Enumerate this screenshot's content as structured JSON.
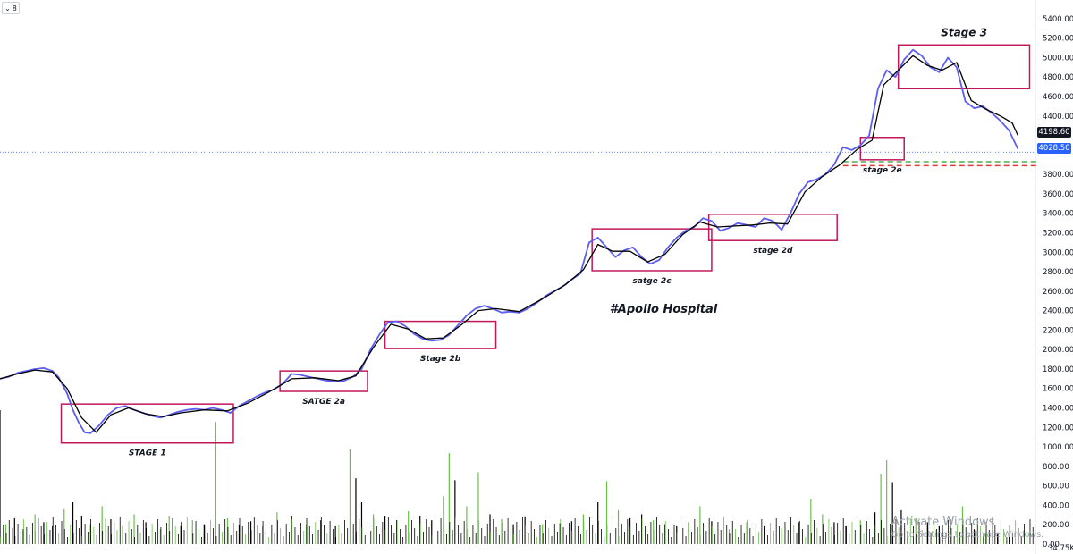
{
  "toolbar": {
    "collapse_icon": "chevron-down-icon",
    "collapse_count": "8"
  },
  "watermark": {
    "title": "Activate Windows",
    "subtitle": "Go to Settings to activate Windows."
  },
  "colors": {
    "price": "#5b5ef0",
    "ma": "#000000",
    "box": "#c2185b",
    "volume_up": "#6abf4b",
    "volume_down": "#000000",
    "last_price_label": "#131722",
    "current_label": "#2962ff"
  },
  "price_labels": {
    "last": "4198.60",
    "current": "4028.50"
  },
  "chart_data": {
    "type": "line",
    "title": "#Apollo Hospital",
    "y_ticks": [
      "5400.00",
      "5200.00",
      "5000.00",
      "4800.00",
      "4600.00",
      "4400.00",
      "3800.00",
      "3600.00",
      "3400.00",
      "3200.00",
      "3000.00",
      "2800.00",
      "2600.00",
      "2400.00",
      "2200.00",
      "2000.00",
      "1800.00",
      "1600.00",
      "1400.00",
      "1200.00",
      "1000.00",
      "800.00",
      "600.00",
      "400.00",
      "200.00",
      "0.00"
    ],
    "y_tick_values": [
      5400,
      5200,
      5000,
      4800,
      4600,
      4400,
      3800,
      3600,
      3400,
      3200,
      3000,
      2800,
      2600,
      2400,
      2200,
      2000,
      1800,
      1600,
      1400,
      1200,
      1000,
      800,
      600,
      400,
      200,
      0
    ],
    "ylim": [
      0,
      5500
    ],
    "volume_label": "34.75K",
    "series": [
      {
        "name": "",
        "style": "price",
        "values": [
          [
            0,
            1700
          ],
          [
            3,
            1720
          ],
          [
            6,
            1760
          ],
          [
            9,
            1780
          ],
          [
            12,
            1800
          ],
          [
            15,
            1810
          ],
          [
            18,
            1780
          ],
          [
            20,
            1720
          ],
          [
            23,
            1550
          ],
          [
            25,
            1380
          ],
          [
            27,
            1250
          ],
          [
            29,
            1150
          ],
          [
            31,
            1140
          ],
          [
            34,
            1220
          ],
          [
            37,
            1330
          ],
          [
            40,
            1400
          ],
          [
            43,
            1420
          ],
          [
            46,
            1380
          ],
          [
            49,
            1350
          ],
          [
            52,
            1320
          ],
          [
            55,
            1300
          ],
          [
            58,
            1330
          ],
          [
            61,
            1360
          ],
          [
            64,
            1380
          ],
          [
            67,
            1390
          ],
          [
            70,
            1380
          ],
          [
            73,
            1400
          ],
          [
            76,
            1380
          ],
          [
            79,
            1350
          ],
          [
            82,
            1420
          ],
          [
            85,
            1470
          ],
          [
            88,
            1520
          ],
          [
            91,
            1560
          ],
          [
            94,
            1590
          ],
          [
            97,
            1650
          ],
          [
            100,
            1750
          ],
          [
            103,
            1740
          ],
          [
            106,
            1720
          ],
          [
            109,
            1700
          ],
          [
            112,
            1680
          ],
          [
            115,
            1670
          ],
          [
            118,
            1680
          ],
          [
            121,
            1720
          ],
          [
            124,
            1800
          ],
          [
            127,
            2000
          ],
          [
            130,
            2150
          ],
          [
            133,
            2280
          ],
          [
            136,
            2290
          ],
          [
            139,
            2240
          ],
          [
            142,
            2160
          ],
          [
            145,
            2110
          ],
          [
            148,
            2090
          ],
          [
            151,
            2100
          ],
          [
            154,
            2150
          ],
          [
            157,
            2250
          ],
          [
            160,
            2350
          ],
          [
            163,
            2420
          ],
          [
            166,
            2450
          ],
          [
            169,
            2420
          ],
          [
            172,
            2380
          ],
          [
            175,
            2390
          ],
          [
            178,
            2380
          ],
          [
            181,
            2420
          ],
          [
            184,
            2480
          ],
          [
            187,
            2550
          ],
          [
            190,
            2600
          ],
          [
            193,
            2650
          ],
          [
            196,
            2720
          ],
          [
            199,
            2780
          ],
          [
            202,
            3100
          ],
          [
            205,
            3150
          ],
          [
            208,
            3050
          ],
          [
            211,
            2950
          ],
          [
            214,
            3020
          ],
          [
            217,
            3050
          ],
          [
            220,
            2950
          ],
          [
            223,
            2880
          ],
          [
            226,
            2920
          ],
          [
            229,
            3050
          ],
          [
            232,
            3150
          ],
          [
            235,
            3220
          ],
          [
            238,
            3260
          ],
          [
            241,
            3350
          ],
          [
            244,
            3320
          ],
          [
            247,
            3220
          ],
          [
            250,
            3250
          ],
          [
            253,
            3300
          ],
          [
            256,
            3280
          ],
          [
            259,
            3260
          ],
          [
            262,
            3350
          ],
          [
            265,
            3320
          ],
          [
            268,
            3230
          ],
          [
            271,
            3400
          ],
          [
            274,
            3600
          ],
          [
            277,
            3720
          ],
          [
            280,
            3750
          ],
          [
            283,
            3800
          ],
          [
            286,
            3900
          ],
          [
            289,
            4080
          ],
          [
            292,
            4050
          ],
          [
            295,
            4100
          ],
          [
            298,
            4200
          ],
          [
            301,
            4680
          ],
          [
            304,
            4870
          ],
          [
            307,
            4800
          ],
          [
            310,
            4980
          ],
          [
            313,
            5080
          ],
          [
            316,
            5020
          ],
          [
            319,
            4900
          ],
          [
            322,
            4850
          ],
          [
            325,
            5000
          ],
          [
            328,
            4900
          ],
          [
            331,
            4550
          ],
          [
            334,
            4480
          ],
          [
            337,
            4500
          ],
          [
            340,
            4430
          ],
          [
            343,
            4350
          ],
          [
            346,
            4250
          ],
          [
            349,
            4060
          ]
        ]
      },
      {
        "name": "",
        "style": "ma",
        "values": [
          [
            0,
            1700
          ],
          [
            6,
            1750
          ],
          [
            12,
            1790
          ],
          [
            18,
            1770
          ],
          [
            23,
            1600
          ],
          [
            28,
            1300
          ],
          [
            33,
            1150
          ],
          [
            38,
            1330
          ],
          [
            44,
            1400
          ],
          [
            50,
            1340
          ],
          [
            56,
            1310
          ],
          [
            62,
            1350
          ],
          [
            70,
            1380
          ],
          [
            78,
            1370
          ],
          [
            85,
            1450
          ],
          [
            92,
            1560
          ],
          [
            100,
            1700
          ],
          [
            108,
            1710
          ],
          [
            116,
            1680
          ],
          [
            122,
            1730
          ],
          [
            128,
            2020
          ],
          [
            134,
            2260
          ],
          [
            140,
            2210
          ],
          [
            146,
            2110
          ],
          [
            152,
            2120
          ],
          [
            158,
            2250
          ],
          [
            164,
            2400
          ],
          [
            170,
            2420
          ],
          [
            178,
            2390
          ],
          [
            186,
            2520
          ],
          [
            194,
            2670
          ],
          [
            200,
            2820
          ],
          [
            205,
            3080
          ],
          [
            210,
            3010
          ],
          [
            216,
            3010
          ],
          [
            222,
            2900
          ],
          [
            228,
            2980
          ],
          [
            234,
            3180
          ],
          [
            240,
            3310
          ],
          [
            246,
            3260
          ],
          [
            252,
            3270
          ],
          [
            258,
            3280
          ],
          [
            264,
            3300
          ],
          [
            270,
            3290
          ],
          [
            276,
            3620
          ],
          [
            282,
            3780
          ],
          [
            288,
            3900
          ],
          [
            294,
            4060
          ],
          [
            299,
            4150
          ],
          [
            303,
            4720
          ],
          [
            308,
            4870
          ],
          [
            313,
            5020
          ],
          [
            318,
            4920
          ],
          [
            323,
            4870
          ],
          [
            328,
            4950
          ],
          [
            333,
            4560
          ],
          [
            338,
            4470
          ],
          [
            343,
            4400
          ],
          [
            347,
            4330
          ],
          [
            349,
            4200
          ]
        ]
      }
    ],
    "boxes": [
      {
        "label": "STAGE 1",
        "label_size": 9,
        "x0": 21,
        "x1": 80,
        "y0": 1040,
        "y1": 1440,
        "label_pos": "below"
      },
      {
        "label": "SATGE 2a",
        "label_size": 9,
        "x0": 96,
        "x1": 126,
        "y0": 1570,
        "y1": 1780,
        "label_pos": "below"
      },
      {
        "label": "Stage 2b",
        "label_size": 9,
        "x0": 132,
        "x1": 170,
        "y0": 2010,
        "y1": 2290,
        "label_pos": "below"
      },
      {
        "label": "satge 2c",
        "label_size": 9,
        "x0": 203,
        "x1": 244,
        "y0": 2810,
        "y1": 3240,
        "label_pos": "below"
      },
      {
        "label": "stage 2d",
        "label_size": 9,
        "x0": 243,
        "x1": 287,
        "y0": 3120,
        "y1": 3390,
        "label_pos": "below"
      },
      {
        "label": "stage 2e",
        "label_size": 9,
        "x0": 295,
        "x1": 310,
        "y0": 3950,
        "y1": 4180,
        "label_pos": "below"
      },
      {
        "label": "Stage 3",
        "label_size": 12,
        "x0": 308,
        "x1": 353,
        "y0": 4680,
        "y1": 5130,
        "label_pos": "above"
      }
    ],
    "levels": [
      {
        "color": "#4caf50",
        "value": 3930,
        "x0": 289,
        "x1": 356
      },
      {
        "color": "#e53935",
        "value": 3890,
        "x0": 289,
        "x1": 356
      }
    ],
    "volume": [
      [
        0,
        1340
      ],
      [
        2,
        200
      ],
      [
        5,
        260
      ],
      [
        8,
        150
      ],
      [
        12,
        300
      ],
      [
        15,
        220
      ],
      [
        18,
        180
      ],
      [
        22,
        350
      ],
      [
        25,
        420
      ],
      [
        28,
        280
      ],
      [
        31,
        200
      ],
      [
        35,
        380
      ],
      [
        38,
        250
      ],
      [
        42,
        180
      ],
      [
        46,
        300
      ],
      [
        50,
        220
      ],
      [
        55,
        150
      ],
      [
        58,
        280
      ],
      [
        62,
        180
      ],
      [
        66,
        240
      ],
      [
        70,
        200
      ],
      [
        74,
        1220
      ],
      [
        78,
        260
      ],
      [
        82,
        190
      ],
      [
        86,
        230
      ],
      [
        90,
        180
      ],
      [
        95,
        320
      ],
      [
        100,
        280
      ],
      [
        105,
        200
      ],
      [
        110,
        240
      ],
      [
        115,
        180
      ],
      [
        120,
        950
      ],
      [
        122,
        660
      ],
      [
        124,
        420
      ],
      [
        128,
        300
      ],
      [
        132,
        280
      ],
      [
        136,
        240
      ],
      [
        140,
        330
      ],
      [
        144,
        280
      ],
      [
        148,
        240
      ],
      [
        152,
        480
      ],
      [
        154,
        910
      ],
      [
        156,
        640
      ],
      [
        160,
        380
      ],
      [
        164,
        720
      ],
      [
        168,
        300
      ],
      [
        172,
        250
      ],
      [
        176,
        200
      ],
      [
        180,
        270
      ],
      [
        186,
        200
      ],
      [
        192,
        210
      ],
      [
        196,
        230
      ],
      [
        200,
        300
      ],
      [
        205,
        420
      ],
      [
        208,
        630
      ],
      [
        212,
        340
      ],
      [
        216,
        260
      ],
      [
        220,
        300
      ],
      [
        224,
        240
      ],
      [
        228,
        200
      ],
      [
        232,
        180
      ],
      [
        236,
        220
      ],
      [
        240,
        380
      ],
      [
        244,
        230
      ],
      [
        250,
        150
      ],
      [
        256,
        220
      ],
      [
        262,
        180
      ],
      [
        268,
        160
      ],
      [
        274,
        220
      ],
      [
        278,
        450
      ],
      [
        282,
        300
      ],
      [
        286,
        220
      ],
      [
        290,
        180
      ],
      [
        295,
        240
      ],
      [
        300,
        320
      ],
      [
        302,
        700
      ],
      [
        304,
        840
      ],
      [
        306,
        620
      ],
      [
        309,
        340
      ],
      [
        314,
        260
      ],
      [
        318,
        220
      ],
      [
        322,
        180
      ],
      [
        326,
        250
      ],
      [
        330,
        380
      ],
      [
        334,
        150
      ],
      [
        338,
        120
      ],
      [
        342,
        100
      ],
      [
        346,
        80
      ]
    ]
  }
}
